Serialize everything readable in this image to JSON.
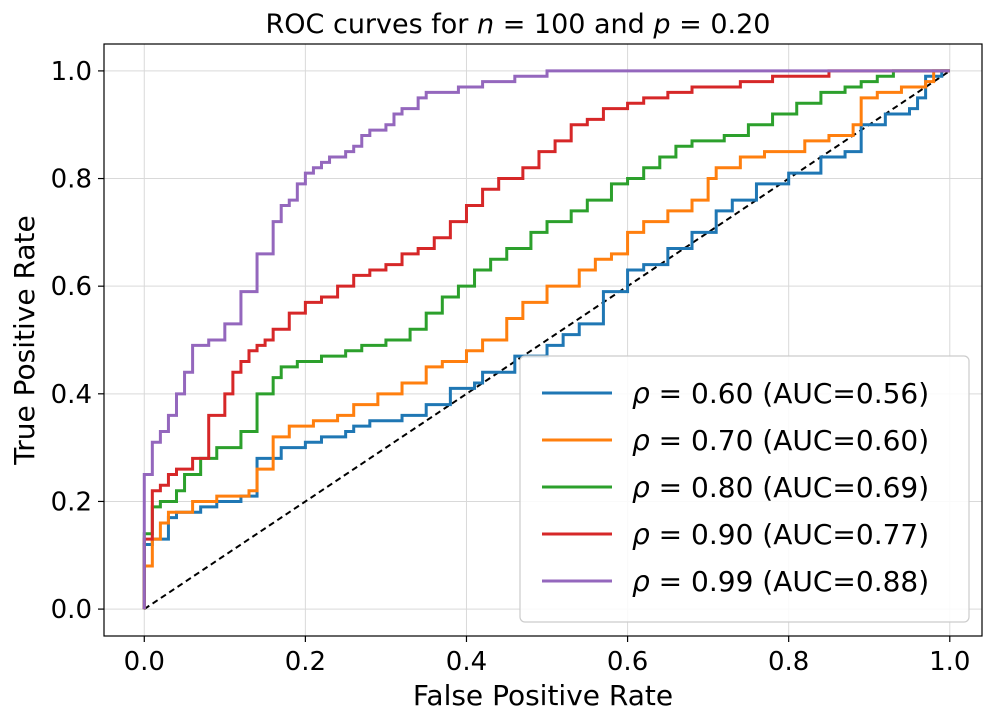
{
  "chart_data": {
    "type": "line",
    "title": "ROC curves for n = 100 and p = 0.20",
    "title_parts": {
      "prefix": "ROC curves for ",
      "n_symbol": "n",
      "n_eq": " = 100 and ",
      "p_symbol": "p",
      "p_eq": " = 0.20"
    },
    "xlabel": "False Positive Rate",
    "ylabel": "True Positive Rate",
    "xlim": [
      -0.05,
      1.04
    ],
    "ylim": [
      -0.05,
      1.05
    ],
    "xticks": [
      0.0,
      0.2,
      0.4,
      0.6,
      0.8,
      1.0
    ],
    "yticks": [
      0.0,
      0.2,
      0.4,
      0.6,
      0.8,
      1.0
    ],
    "xtick_labels": [
      "0.0",
      "0.2",
      "0.4",
      "0.6",
      "0.8",
      "1.0"
    ],
    "ytick_labels": [
      "0.0",
      "0.2",
      "0.4",
      "0.6",
      "0.8",
      "1.0"
    ],
    "grid": true,
    "legend_position": "lower-right",
    "diagonal": {
      "style": "dashed",
      "color": "#000000",
      "from": [
        0,
        0
      ],
      "to": [
        1,
        1
      ]
    },
    "series": [
      {
        "name": "ρ = 0.60 (AUC=0.56)",
        "rho_symbol": "ρ",
        "rho_value": " = 0.60",
        "auc_text": " (AUC=0.56)",
        "color": "#1f77b4",
        "x": [
          0,
          0,
          0.01,
          0.01,
          0.03,
          0.04,
          0.07,
          0.09,
          0.12,
          0.14,
          0.17,
          0.19,
          0.2,
          0.22,
          0.25,
          0.26,
          0.28,
          0.3,
          0.32,
          0.35,
          0.38,
          0.41,
          0.42,
          0.46,
          0.5,
          0.52,
          0.54,
          0.57,
          0.6,
          0.62,
          0.65,
          0.68,
          0.71,
          0.73,
          0.76,
          0.8,
          0.84,
          0.87,
          0.89,
          0.89,
          0.92,
          0.95,
          0.96,
          0.97,
          0.99,
          1.0
        ],
        "y": [
          0,
          0.12,
          0.12,
          0.13,
          0.17,
          0.18,
          0.19,
          0.2,
          0.21,
          0.28,
          0.3,
          0.3,
          0.31,
          0.32,
          0.33,
          0.34,
          0.35,
          0.35,
          0.36,
          0.38,
          0.41,
          0.42,
          0.44,
          0.47,
          0.49,
          0.51,
          0.53,
          0.59,
          0.63,
          0.64,
          0.67,
          0.7,
          0.74,
          0.76,
          0.79,
          0.81,
          0.84,
          0.85,
          0.85,
          0.9,
          0.92,
          0.93,
          0.95,
          0.99,
          1.0,
          1.0
        ]
      },
      {
        "name": "ρ = 0.70 (AUC=0.60)",
        "rho_symbol": "ρ",
        "rho_value": " = 0.70",
        "auc_text": " (AUC=0.60)",
        "color": "#ff7f0e",
        "x": [
          0,
          0,
          0.01,
          0.02,
          0.03,
          0.06,
          0.09,
          0.13,
          0.14,
          0.16,
          0.18,
          0.21,
          0.24,
          0.26,
          0.29,
          0.32,
          0.35,
          0.37,
          0.4,
          0.42,
          0.45,
          0.47,
          0.5,
          0.54,
          0.56,
          0.58,
          0.6,
          0.62,
          0.65,
          0.68,
          0.7,
          0.71,
          0.74,
          0.77,
          0.82,
          0.85,
          0.88,
          0.89,
          0.91,
          0.94,
          0.97,
          0.98,
          1.0
        ],
        "y": [
          0,
          0.08,
          0.13,
          0.16,
          0.18,
          0.2,
          0.21,
          0.22,
          0.26,
          0.32,
          0.34,
          0.35,
          0.36,
          0.38,
          0.4,
          0.42,
          0.45,
          0.46,
          0.48,
          0.5,
          0.54,
          0.57,
          0.6,
          0.63,
          0.65,
          0.66,
          0.7,
          0.72,
          0.74,
          0.76,
          0.8,
          0.82,
          0.84,
          0.85,
          0.87,
          0.88,
          0.9,
          0.95,
          0.96,
          0.97,
          0.98,
          1.0,
          1.0
        ]
      },
      {
        "name": "ρ = 0.80 (AUC=0.69)",
        "rho_symbol": "ρ",
        "rho_value": " = 0.80",
        "auc_text": " (AUC=0.69)",
        "color": "#2ca02c",
        "x": [
          0,
          0,
          0.01,
          0.02,
          0.04,
          0.05,
          0.07,
          0.09,
          0.12,
          0.14,
          0.16,
          0.17,
          0.19,
          0.22,
          0.25,
          0.27,
          0.3,
          0.33,
          0.35,
          0.37,
          0.39,
          0.41,
          0.43,
          0.45,
          0.48,
          0.5,
          0.53,
          0.55,
          0.58,
          0.6,
          0.62,
          0.64,
          0.66,
          0.68,
          0.72,
          0.75,
          0.78,
          0.81,
          0.84,
          0.87,
          0.89,
          0.91,
          0.93,
          0.97,
          1.0
        ],
        "y": [
          0,
          0.14,
          0.19,
          0.2,
          0.22,
          0.25,
          0.28,
          0.3,
          0.33,
          0.4,
          0.43,
          0.45,
          0.46,
          0.47,
          0.48,
          0.49,
          0.5,
          0.52,
          0.55,
          0.58,
          0.6,
          0.63,
          0.65,
          0.67,
          0.7,
          0.72,
          0.74,
          0.76,
          0.79,
          0.8,
          0.82,
          0.84,
          0.86,
          0.87,
          0.88,
          0.9,
          0.92,
          0.94,
          0.96,
          0.97,
          0.98,
          0.99,
          1.0,
          1.0,
          1.0
        ]
      },
      {
        "name": "ρ = 0.90 (AUC=0.77)",
        "rho_symbol": "ρ",
        "rho_value": " = 0.90",
        "auc_text": " (AUC=0.77)",
        "color": "#d62728",
        "x": [
          0,
          0,
          0.01,
          0.02,
          0.03,
          0.04,
          0.06,
          0.08,
          0.1,
          0.11,
          0.12,
          0.13,
          0.14,
          0.15,
          0.16,
          0.18,
          0.2,
          0.22,
          0.24,
          0.26,
          0.28,
          0.3,
          0.32,
          0.34,
          0.36,
          0.38,
          0.4,
          0.42,
          0.44,
          0.47,
          0.49,
          0.51,
          0.53,
          0.55,
          0.57,
          0.6,
          0.62,
          0.65,
          0.68,
          0.7,
          0.74,
          0.78,
          0.81,
          0.85,
          0.89,
          1.0
        ],
        "y": [
          0,
          0.13,
          0.22,
          0.23,
          0.25,
          0.26,
          0.28,
          0.36,
          0.4,
          0.44,
          0.46,
          0.48,
          0.49,
          0.5,
          0.52,
          0.55,
          0.57,
          0.58,
          0.6,
          0.62,
          0.63,
          0.64,
          0.66,
          0.67,
          0.69,
          0.72,
          0.75,
          0.78,
          0.8,
          0.82,
          0.85,
          0.87,
          0.9,
          0.91,
          0.93,
          0.94,
          0.95,
          0.96,
          0.97,
          0.97,
          0.98,
          0.99,
          0.99,
          1.0,
          1.0,
          1.0
        ]
      },
      {
        "name": "ρ = 0.99 (AUC=0.88)",
        "rho_symbol": "ρ",
        "rho_value": " = 0.99",
        "auc_text": " (AUC=0.88)",
        "color": "#9467bd",
        "x": [
          0,
          0,
          0.01,
          0.02,
          0.03,
          0.04,
          0.05,
          0.06,
          0.08,
          0.1,
          0.12,
          0.14,
          0.16,
          0.17,
          0.18,
          0.19,
          0.2,
          0.21,
          0.22,
          0.23,
          0.25,
          0.26,
          0.27,
          0.28,
          0.3,
          0.31,
          0.32,
          0.34,
          0.35,
          0.38,
          0.39,
          0.42,
          0.46,
          0.5,
          0.55,
          1.0
        ],
        "y": [
          0,
          0.25,
          0.31,
          0.33,
          0.36,
          0.4,
          0.44,
          0.49,
          0.5,
          0.53,
          0.59,
          0.66,
          0.72,
          0.75,
          0.76,
          0.79,
          0.81,
          0.82,
          0.83,
          0.84,
          0.85,
          0.86,
          0.88,
          0.89,
          0.9,
          0.92,
          0.93,
          0.95,
          0.96,
          0.96,
          0.97,
          0.98,
          0.99,
          1.0,
          1.0,
          1.0
        ]
      }
    ]
  },
  "colors": {
    "grid": "#d9d9d9",
    "axis": "#000000",
    "legend_border": "#cccccc"
  }
}
